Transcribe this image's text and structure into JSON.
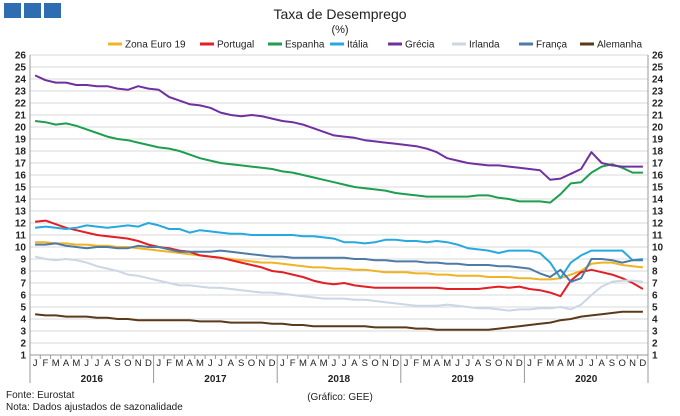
{
  "brand_color": "#2f6db2",
  "chart_data": {
    "type": "line",
    "title": "Taxa de Desemprego",
    "subtitle": "(%)",
    "ylim": [
      1,
      26
    ],
    "yticks": [
      1,
      2,
      3,
      4,
      5,
      6,
      7,
      8,
      9,
      10,
      11,
      12,
      13,
      14,
      15,
      16,
      17,
      18,
      19,
      20,
      21,
      22,
      23,
      24,
      25,
      26
    ],
    "month_labels": [
      "J",
      "F",
      "M",
      "A",
      "M",
      "J",
      "J",
      "A",
      "S",
      "O",
      "N",
      "D"
    ],
    "years": [
      "2016",
      "2017",
      "2018",
      "2019",
      "2020"
    ],
    "grid": true,
    "legend_position": "top",
    "series": [
      {
        "name": "Zona Euro 19",
        "color": "#f0b323",
        "values": [
          10.4,
          10.4,
          10.3,
          10.3,
          10.2,
          10.2,
          10.1,
          10.1,
          10.0,
          10.0,
          9.9,
          9.8,
          9.7,
          9.6,
          9.5,
          9.4,
          9.3,
          9.2,
          9.1,
          9.0,
          8.9,
          8.8,
          8.7,
          8.7,
          8.6,
          8.5,
          8.4,
          8.3,
          8.3,
          8.2,
          8.2,
          8.1,
          8.1,
          8.0,
          7.9,
          7.9,
          7.9,
          7.8,
          7.8,
          7.7,
          7.7,
          7.6,
          7.6,
          7.6,
          7.5,
          7.5,
          7.5,
          7.4,
          7.4,
          7.3,
          7.3,
          7.4,
          7.7,
          8.0,
          8.6,
          8.7,
          8.7,
          8.5,
          8.4,
          8.3
        ]
      },
      {
        "name": "Portugal",
        "color": "#e31e25",
        "values": [
          12.1,
          12.2,
          11.9,
          11.6,
          11.4,
          11.2,
          11.0,
          10.9,
          10.8,
          10.7,
          10.5,
          10.2,
          10.0,
          9.9,
          9.7,
          9.6,
          9.3,
          9.2,
          9.1,
          8.9,
          8.7,
          8.5,
          8.3,
          8.0,
          7.9,
          7.7,
          7.5,
          7.2,
          7.0,
          6.9,
          7.0,
          6.8,
          6.7,
          6.6,
          6.6,
          6.6,
          6.6,
          6.6,
          6.6,
          6.6,
          6.5,
          6.5,
          6.5,
          6.5,
          6.6,
          6.7,
          6.6,
          6.7,
          6.5,
          6.4,
          6.2,
          5.9,
          7.2,
          7.9,
          8.1,
          7.9,
          7.7,
          7.4,
          7.0,
          6.5
        ]
      },
      {
        "name": "Espanha",
        "color": "#1e9e4f",
        "values": [
          20.5,
          20.4,
          20.2,
          20.3,
          20.1,
          19.8,
          19.5,
          19.2,
          19.0,
          18.9,
          18.7,
          18.5,
          18.3,
          18.2,
          18.0,
          17.7,
          17.4,
          17.2,
          17.0,
          16.9,
          16.8,
          16.7,
          16.6,
          16.5,
          16.3,
          16.2,
          16.0,
          15.8,
          15.6,
          15.4,
          15.2,
          15.0,
          14.9,
          14.8,
          14.7,
          14.5,
          14.4,
          14.3,
          14.2,
          14.2,
          14.2,
          14.2,
          14.2,
          14.3,
          14.3,
          14.1,
          14.0,
          13.8,
          13.8,
          13.8,
          13.7,
          14.4,
          15.3,
          15.4,
          16.2,
          16.7,
          16.9,
          16.6,
          16.2,
          16.2
        ]
      },
      {
        "name": "Itália",
        "color": "#27a9e0",
        "values": [
          11.6,
          11.7,
          11.6,
          11.5,
          11.6,
          11.8,
          11.7,
          11.6,
          11.7,
          11.8,
          11.7,
          12.0,
          11.8,
          11.5,
          11.5,
          11.2,
          11.4,
          11.3,
          11.2,
          11.1,
          11.1,
          11.0,
          11.0,
          11.0,
          11.0,
          11.0,
          10.9,
          10.9,
          10.8,
          10.7,
          10.4,
          10.4,
          10.3,
          10.4,
          10.6,
          10.6,
          10.5,
          10.5,
          10.4,
          10.5,
          10.4,
          10.2,
          9.9,
          9.8,
          9.7,
          9.5,
          9.7,
          9.7,
          9.7,
          9.5,
          8.7,
          7.4,
          8.7,
          9.3,
          9.7,
          9.7,
          9.7,
          9.7,
          8.9,
          9.0
        ]
      },
      {
        "name": "Grécia",
        "color": "#7030a0",
        "values": [
          24.3,
          23.9,
          23.7,
          23.7,
          23.5,
          23.5,
          23.4,
          23.4,
          23.2,
          23.1,
          23.4,
          23.2,
          23.1,
          22.5,
          22.2,
          21.9,
          21.8,
          21.6,
          21.2,
          21.0,
          20.9,
          21.0,
          20.9,
          20.7,
          20.5,
          20.4,
          20.2,
          19.9,
          19.6,
          19.3,
          19.2,
          19.1,
          18.9,
          18.8,
          18.7,
          18.6,
          18.5,
          18.4,
          18.2,
          17.9,
          17.4,
          17.2,
          17.0,
          16.9,
          16.8,
          16.8,
          16.7,
          16.6,
          16.5,
          16.4,
          15.6,
          15.7,
          16.1,
          16.5,
          17.9,
          17.0,
          16.8,
          16.7,
          16.7,
          16.7
        ]
      },
      {
        "name": "Irlanda",
        "color": "#ccd6e4",
        "values": [
          9.2,
          9.0,
          8.9,
          9.0,
          8.9,
          8.7,
          8.4,
          8.2,
          8.0,
          7.7,
          7.6,
          7.4,
          7.2,
          7.0,
          6.8,
          6.8,
          6.7,
          6.6,
          6.6,
          6.5,
          6.4,
          6.3,
          6.2,
          6.2,
          6.1,
          6.0,
          5.9,
          5.8,
          5.7,
          5.7,
          5.7,
          5.6,
          5.6,
          5.5,
          5.4,
          5.3,
          5.2,
          5.1,
          5.1,
          5.1,
          5.2,
          5.1,
          5.0,
          4.9,
          4.9,
          4.8,
          4.7,
          4.8,
          4.8,
          4.9,
          4.9,
          5.0,
          4.8,
          5.2,
          6.0,
          6.7,
          7.1,
          7.2,
          7.2,
          7.1
        ]
      },
      {
        "name": "França",
        "color": "#4e7aa6",
        "values": [
          10.2,
          10.2,
          10.3,
          10.1,
          10.0,
          9.9,
          10.0,
          10.0,
          9.9,
          9.9,
          10.1,
          10.0,
          10.0,
          9.8,
          9.6,
          9.6,
          9.6,
          9.6,
          9.7,
          9.6,
          9.5,
          9.4,
          9.3,
          9.2,
          9.2,
          9.1,
          9.1,
          9.1,
          9.1,
          9.1,
          9.1,
          9.0,
          9.0,
          8.9,
          8.9,
          8.8,
          8.8,
          8.8,
          8.7,
          8.7,
          8.6,
          8.6,
          8.5,
          8.5,
          8.5,
          8.4,
          8.4,
          8.3,
          8.2,
          7.8,
          7.5,
          8.1,
          7.1,
          7.4,
          9.0,
          9.0,
          8.9,
          8.7,
          8.9,
          8.9
        ]
      },
      {
        "name": "Alemanha",
        "color": "#5a3a1a",
        "values": [
          4.4,
          4.3,
          4.3,
          4.2,
          4.2,
          4.2,
          4.1,
          4.1,
          4.0,
          4.0,
          3.9,
          3.9,
          3.9,
          3.9,
          3.9,
          3.9,
          3.8,
          3.8,
          3.8,
          3.7,
          3.7,
          3.7,
          3.7,
          3.6,
          3.6,
          3.5,
          3.5,
          3.4,
          3.4,
          3.4,
          3.4,
          3.4,
          3.4,
          3.3,
          3.3,
          3.3,
          3.3,
          3.2,
          3.2,
          3.1,
          3.1,
          3.1,
          3.1,
          3.1,
          3.1,
          3.2,
          3.3,
          3.4,
          3.5,
          3.6,
          3.7,
          3.9,
          4.0,
          4.2,
          4.3,
          4.4,
          4.5,
          4.6,
          4.6,
          4.6
        ]
      }
    ]
  },
  "footer": {
    "source": "Fonte: Eurostat",
    "note": "Nota: Dados ajustados de sazonalidade",
    "credit": "(Gráfico: GEE)"
  }
}
